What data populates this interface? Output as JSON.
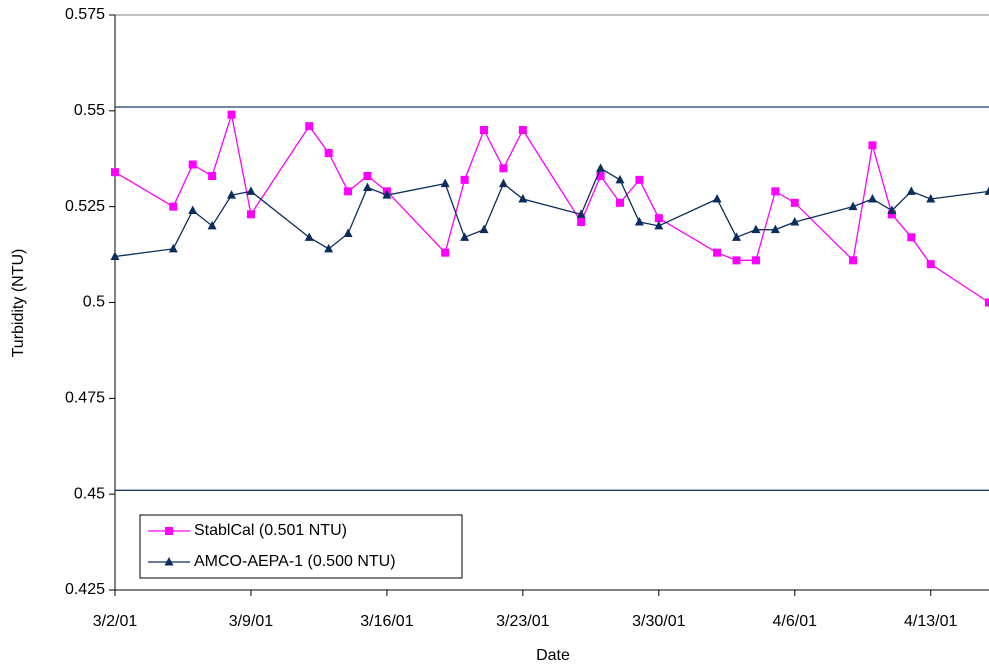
{
  "chart_data": {
    "type": "line",
    "x_label": "Date",
    "y_label": "Turbidity (NTU)",
    "x": [
      "2001-03-02",
      "2001-03-05",
      "2001-03-06",
      "2001-03-07",
      "2001-03-08",
      "2001-03-09",
      "2001-03-12",
      "2001-03-13",
      "2001-03-14",
      "2001-03-15",
      "2001-03-16",
      "2001-03-19",
      "2001-03-20",
      "2001-03-21",
      "2001-03-22",
      "2001-03-23",
      "2001-03-26",
      "2001-03-27",
      "2001-03-28",
      "2001-03-29",
      "2001-03-30",
      "2001-04-02",
      "2001-04-03",
      "2001-04-04",
      "2001-04-05",
      "2001-04-06",
      "2001-04-09",
      "2001-04-10",
      "2001-04-11",
      "2001-04-12",
      "2001-04-13",
      "2001-04-16"
    ],
    "series": [
      {
        "name": "StablCal (0.501 NTU)",
        "color": "#ff00ff",
        "marker": "square",
        "values": [
          0.534,
          0.525,
          0.536,
          0.533,
          0.549,
          0.523,
          0.546,
          0.539,
          0.529,
          0.533,
          0.529,
          0.513,
          0.532,
          0.545,
          0.535,
          0.545,
          0.521,
          0.533,
          0.526,
          0.532,
          0.522,
          0.513,
          0.511,
          0.511,
          0.529,
          0.526,
          0.511,
          0.541,
          0.523,
          0.517,
          0.51,
          0.5
        ]
      },
      {
        "name": "AMCO-AEPA-1 (0.500 NTU)",
        "color": "#0b2d5b",
        "marker": "triangle",
        "values": [
          0.512,
          0.514,
          0.524,
          0.52,
          0.528,
          0.529,
          0.517,
          0.514,
          0.518,
          0.53,
          0.528,
          0.531,
          0.517,
          0.519,
          0.531,
          0.527,
          0.523,
          0.535,
          0.532,
          0.521,
          0.52,
          0.527,
          0.517,
          0.519,
          0.519,
          0.521,
          0.525,
          0.527,
          0.524,
          0.529,
          0.527,
          0.529
        ]
      }
    ],
    "reference_lines": [
      0.551,
      0.451
    ],
    "reference_color": "#1a3a6e",
    "xlim": [
      "2001-03-02",
      "2001-04-16"
    ],
    "xticks": [
      {
        "value": "2001-03-02",
        "label": "3/2/01"
      },
      {
        "value": "2001-03-09",
        "label": "3/9/01"
      },
      {
        "value": "2001-03-16",
        "label": "3/16/01"
      },
      {
        "value": "2001-03-23",
        "label": "3/23/01"
      },
      {
        "value": "2001-03-30",
        "label": "3/30/01"
      },
      {
        "value": "2001-04-06",
        "label": "4/6/01"
      },
      {
        "value": "2001-04-13",
        "label": "4/13/01"
      }
    ],
    "ylim": [
      0.425,
      0.575
    ],
    "yticks": [
      0.575,
      0.55,
      0.525,
      0.5,
      0.475,
      0.45,
      0.425
    ],
    "legend": "lower left"
  }
}
